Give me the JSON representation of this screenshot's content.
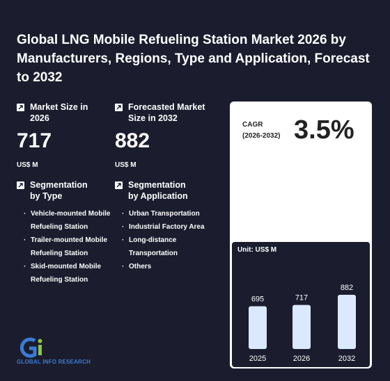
{
  "title": "Global LNG Mobile Refueling Station Market 2026 by Manufacturers, Regions, Type and Application, Forecast to 2032",
  "market_size": {
    "label": "Market Size in 2026",
    "value": "717",
    "unit": "US$ M"
  },
  "forecast_size": {
    "label": "Forecasted Market Size in 2032",
    "value": "882",
    "unit": "US$ M"
  },
  "cagr": {
    "label_line1": "CAGR",
    "label_line2": "(2026-2032)",
    "value": "3.5%"
  },
  "segment_type": {
    "label": "Segmentation by Type",
    "items": [
      "Vehicle-mounted Mobile Refueling Station",
      "Trailer-mounted Mobile Refueling Station",
      "Skid-mounted Mobile Refueling Station"
    ]
  },
  "segment_application": {
    "label": "Segmentation by Application",
    "items": [
      "Urban Transportation",
      "Industrial Factory Area",
      "Long-distance Transportation",
      "Others"
    ]
  },
  "logo": {
    "text": "GLOBAL INFO RESEARCH"
  },
  "colors": {
    "background": "#1b1d2e",
    "bar": "#dbe9ff",
    "accent": "#3a7bd5"
  },
  "chart_data": {
    "type": "bar",
    "unit_label": "Unit: US$ M",
    "categories": [
      "2025",
      "2026",
      "2032"
    ],
    "values": [
      695,
      717,
      882
    ]
  }
}
